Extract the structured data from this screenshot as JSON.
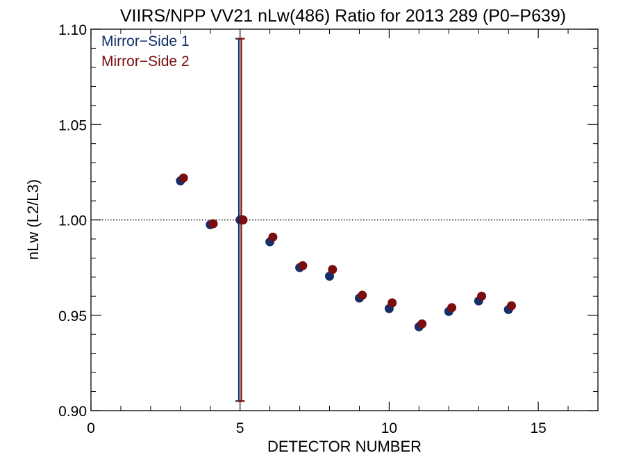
{
  "chart_data": {
    "type": "scatter",
    "title": "VIIRS/NPP VV21 nLw(486) Ratio for 2013 289 (P0−P639)",
    "xlabel": "DETECTOR NUMBER",
    "ylabel": "nLw (L2/L3)",
    "xlim": [
      0,
      17
    ],
    "ylim": [
      0.9,
      1.1
    ],
    "x_ticks": [
      0,
      5,
      10,
      15
    ],
    "x_tick_labels": [
      "0",
      "5",
      "10",
      "15"
    ],
    "y_ticks": [
      0.9,
      0.95,
      1.0,
      1.05,
      1.1
    ],
    "y_tick_labels": [
      "0.90",
      "0.95",
      "1.00",
      "1.05",
      "1.10"
    ],
    "reference_line": 1.0,
    "legend_position": "top-left",
    "series": [
      {
        "name": "Mirror−Side 1",
        "color": "#13306a",
        "x": [
          3,
          4,
          5,
          6,
          7,
          8,
          9,
          10,
          11,
          12,
          13,
          14
        ],
        "y": [
          1.0205,
          0.9975,
          1.0,
          0.9885,
          0.975,
          0.9705,
          0.959,
          0.9535,
          0.944,
          0.952,
          0.9575,
          0.953
        ],
        "error_bar": {
          "x": 5,
          "low": 0.905,
          "high": 1.095
        }
      },
      {
        "name": "Mirror−Side 2",
        "color": "#7a0d0f",
        "x": [
          3,
          4,
          5,
          6,
          7,
          8,
          9,
          10,
          11,
          12,
          13,
          14
        ],
        "y": [
          1.022,
          0.998,
          1.0,
          0.991,
          0.976,
          0.974,
          0.9605,
          0.9565,
          0.9455,
          0.954,
          0.96,
          0.955
        ],
        "error_bar": {
          "x": 5,
          "low": 0.905,
          "high": 1.095
        }
      }
    ]
  }
}
